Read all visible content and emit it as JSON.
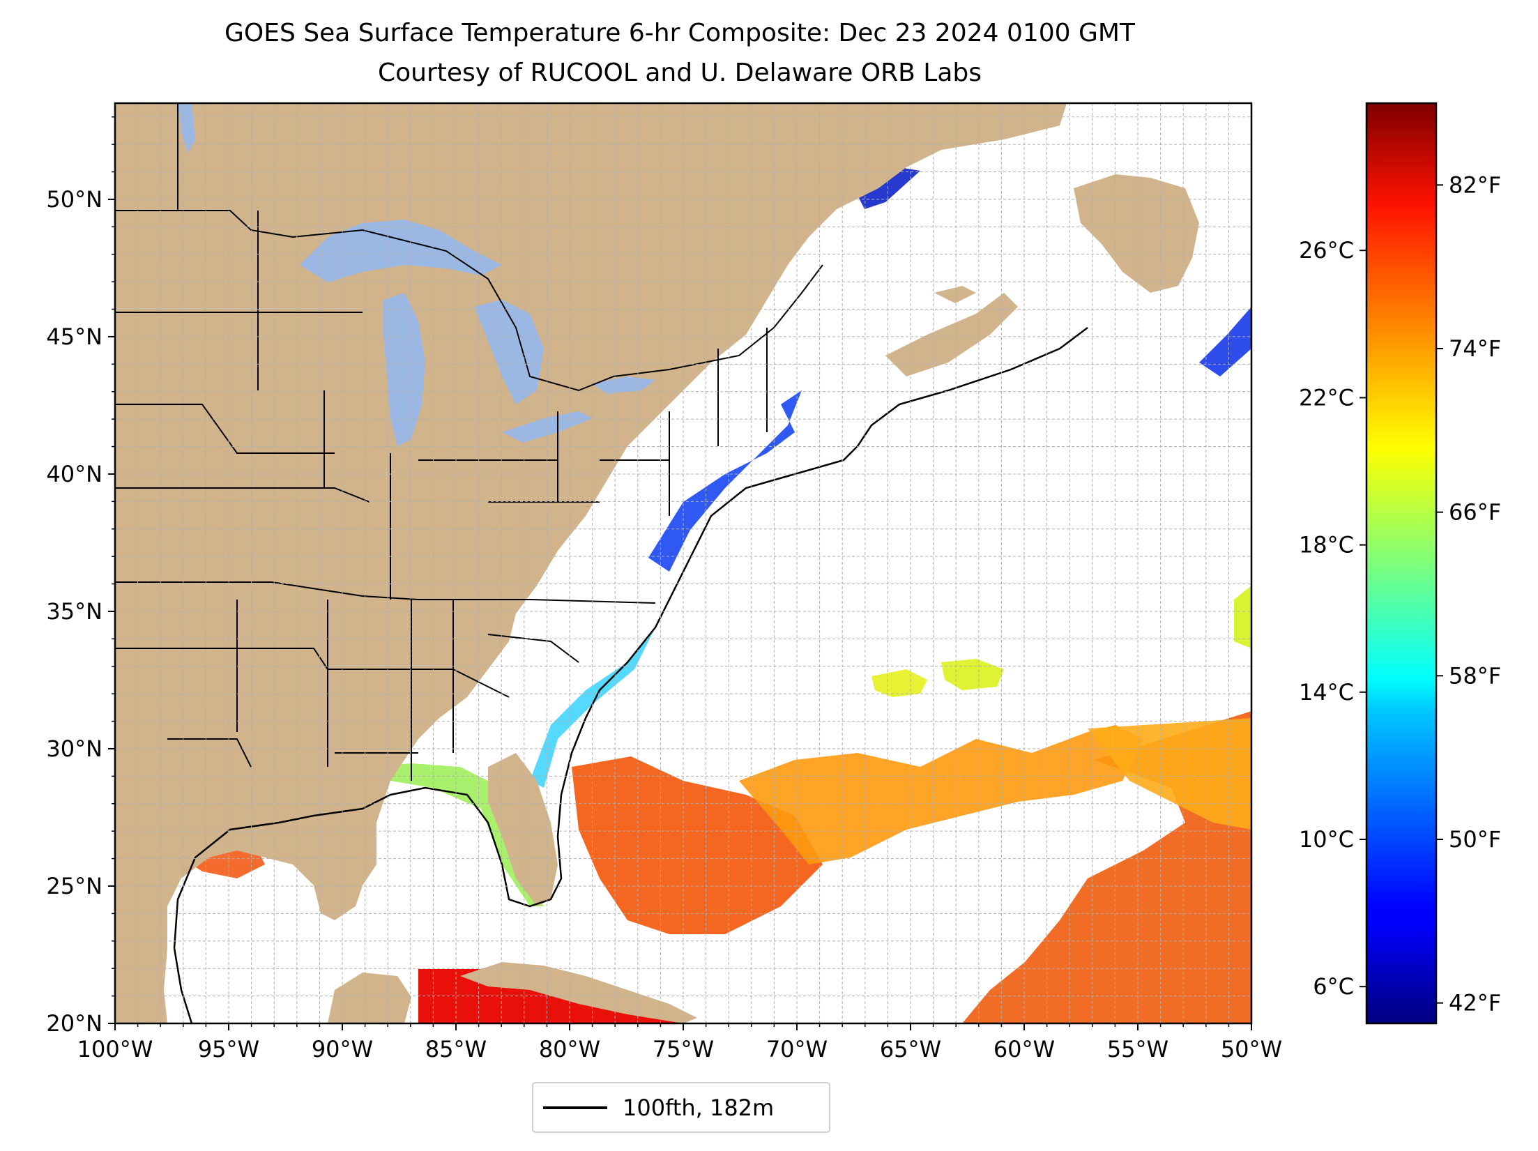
{
  "title": {
    "line1": "GOES Sea Surface Temperature 6-hr Composite: Dec 23 2024 0100 GMT",
    "line2": "Courtesy of RUCOOL and U. Delaware ORB Labs"
  },
  "map": {
    "extent": {
      "lon": [
        -100,
        -50
      ],
      "lat": [
        20,
        53.5
      ]
    },
    "lon_ticks": [
      {
        "value": -100,
        "label": "100°W"
      },
      {
        "value": -95,
        "label": "95°W"
      },
      {
        "value": -90,
        "label": "90°W"
      },
      {
        "value": -85,
        "label": "85°W"
      },
      {
        "value": -80,
        "label": "80°W"
      },
      {
        "value": -75,
        "label": "75°W"
      },
      {
        "value": -70,
        "label": "70°W"
      },
      {
        "value": -65,
        "label": "65°W"
      },
      {
        "value": -60,
        "label": "60°W"
      },
      {
        "value": -55,
        "label": "55°W"
      },
      {
        "value": -50,
        "label": "50°W"
      }
    ],
    "lat_ticks": [
      {
        "value": 20,
        "label": "20°N"
      },
      {
        "value": 25,
        "label": "25°N"
      },
      {
        "value": 30,
        "label": "30°N"
      },
      {
        "value": 35,
        "label": "35°N"
      },
      {
        "value": 40,
        "label": "40°N"
      },
      {
        "value": 45,
        "label": "45°N"
      },
      {
        "value": 50,
        "label": "50°N"
      }
    ],
    "grid_step_deg": 1,
    "colors": {
      "land": "#d2b48c",
      "lakes": "#9bb8e4",
      "ocean": "#ffffff",
      "grid": "#b0b0b0",
      "borders": "#000000"
    }
  },
  "colorbar": {
    "colormap": "jet",
    "range_celsius": [
      5,
      30
    ],
    "celsius_ticks": [
      {
        "value": 6,
        "label": "6°C"
      },
      {
        "value": 10,
        "label": "10°C"
      },
      {
        "value": 14,
        "label": "14°C"
      },
      {
        "value": 18,
        "label": "18°C"
      },
      {
        "value": 22,
        "label": "22°C"
      },
      {
        "value": 26,
        "label": "26°C"
      }
    ],
    "fahrenheit_ticks": [
      {
        "value": 42,
        "label": "42°F"
      },
      {
        "value": 50,
        "label": "50°F"
      },
      {
        "value": 58,
        "label": "58°F"
      },
      {
        "value": 66,
        "label": "66°F"
      },
      {
        "value": 74,
        "label": "74°F"
      },
      {
        "value": 82,
        "label": "82°F"
      }
    ]
  },
  "legend": {
    "label": "100fth, 182m",
    "line_color": "#000000"
  }
}
